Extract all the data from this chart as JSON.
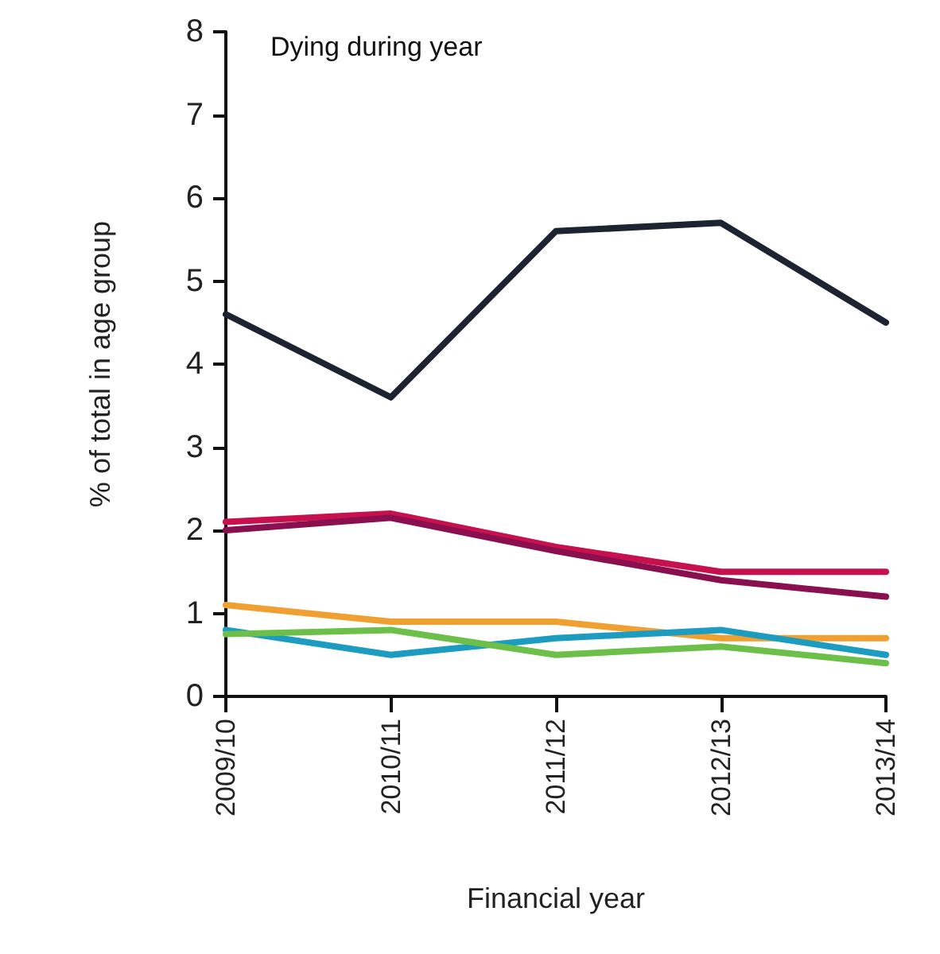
{
  "chart_data": {
    "type": "line",
    "title": "Dying during year",
    "xlabel": "Financial year",
    "ylabel": "% of total in age group",
    "categories": [
      "2009/10",
      "2010/11",
      "2011/12",
      "2012/13",
      "2013/14"
    ],
    "series": [
      {
        "color": "#1b2430",
        "values": [
          4.6,
          3.6,
          5.6,
          5.7,
          4.5
        ]
      },
      {
        "color": "#c8104f",
        "values": [
          2.1,
          2.2,
          1.8,
          1.5,
          1.5
        ]
      },
      {
        "color": "#8a0f4e",
        "values": [
          2.0,
          2.15,
          1.75,
          1.4,
          1.2
        ]
      },
      {
        "color": "#f0a030",
        "values": [
          1.1,
          0.9,
          0.9,
          0.7,
          0.7
        ]
      },
      {
        "color": "#1c9cc0",
        "values": [
          0.8,
          0.5,
          0.7,
          0.8,
          0.5
        ]
      },
      {
        "color": "#6cc04a",
        "values": [
          0.75,
          0.8,
          0.5,
          0.6,
          0.4
        ]
      }
    ],
    "ylim": [
      0,
      8
    ],
    "yticks": [
      0,
      1,
      2,
      3,
      4,
      5,
      6,
      7,
      8
    ],
    "grid": false,
    "marker": "none",
    "line_style": "solid"
  }
}
